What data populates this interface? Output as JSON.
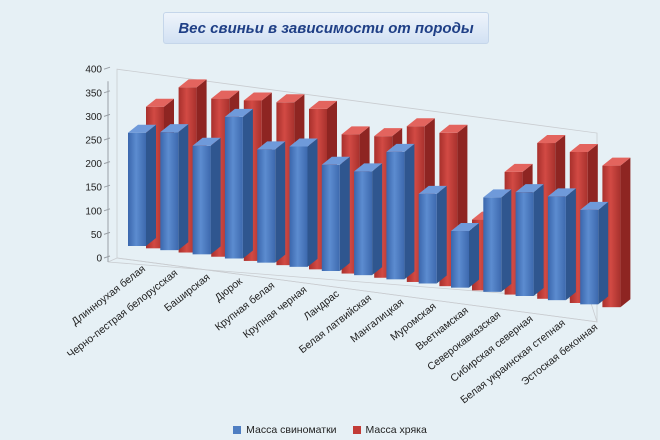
{
  "chart_data": {
    "type": "bar",
    "title": "Вес свиньи в зависимости от породы",
    "xlabel": "",
    "ylabel": "",
    "ylim": [
      0,
      400
    ],
    "y_ticks": [
      "0",
      "50",
      "100",
      "150",
      "200",
      "250",
      "300",
      "350",
      "400"
    ],
    "grid": false,
    "legend_position": "bottom",
    "categories": [
      "Длинноухая белая",
      "Черно-пестрая белорусская",
      "Баширская",
      "Дюрок",
      "Крупная белая",
      "Крупная черная",
      "Ландрас",
      "Белая латвийская",
      "Мангалицкая",
      "Муромская",
      "Вьетнамская",
      "Северокавказская",
      "Сибирская северная",
      "Белая украинская степная",
      "Эстоская беконная"
    ],
    "series": [
      {
        "name": "Масса свиноматки",
        "color": "#4f7ec2",
        "values": [
          240,
          250,
          230,
          300,
          240,
          255,
          225,
          220,
          270,
          190,
          120,
          200,
          220,
          220,
          200
        ]
      },
      {
        "name": "Масса хряка",
        "color": "#c23b36",
        "values": [
          300,
          350,
          335,
          340,
          345,
          340,
          295,
          300,
          330,
          325,
          150,
          260,
          330,
          320,
          300
        ]
      }
    ]
  }
}
